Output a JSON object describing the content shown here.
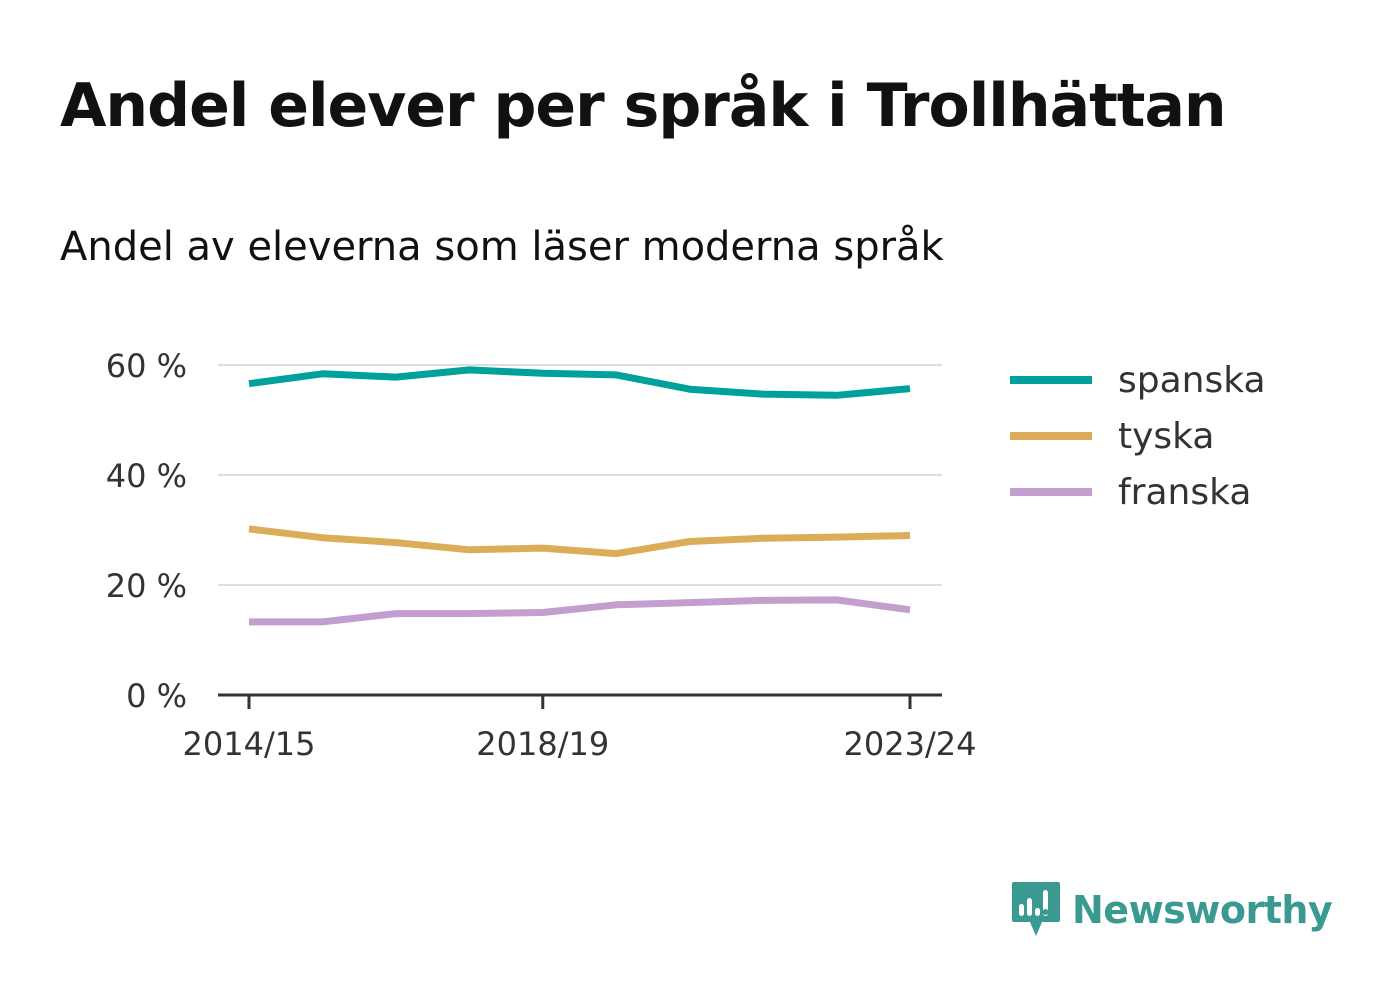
{
  "title": "Andel elever per språk i Trollhättan",
  "subtitle": "Andel av eleverna som läser moderna språk",
  "brand": {
    "name": "Newsworthy",
    "color": "#3a9a92",
    "icon": "newsworthy-logo-icon"
  },
  "chart_data": {
    "type": "line",
    "x": [
      "2014/15",
      "2015/16",
      "2016/17",
      "2017/18",
      "2018/19",
      "2019/20",
      "2020/21",
      "2021/22",
      "2022/23",
      "2023/24"
    ],
    "x_tick_labels": [
      "2014/15",
      "2018/19",
      "2023/24"
    ],
    "y_tick_labels": [
      "0 %",
      "20 %",
      "40 %",
      "60 %"
    ],
    "y_ticks": [
      0,
      20,
      40,
      60
    ],
    "ylim": [
      0,
      60
    ],
    "grid": true,
    "legend_position": "right",
    "series": [
      {
        "name": "spanska",
        "color": "#00a19a",
        "values": [
          56.6,
          58.4,
          57.8,
          59.1,
          58.5,
          58.2,
          55.6,
          54.7,
          54.5,
          55.7
        ]
      },
      {
        "name": "tyska",
        "color": "#dbad5a",
        "values": [
          30.2,
          28.6,
          27.7,
          26.4,
          26.7,
          25.7,
          27.9,
          28.5,
          28.7,
          29.0
        ]
      },
      {
        "name": "franska",
        "color": "#c29fce",
        "values": [
          13.3,
          13.3,
          14.8,
          14.8,
          15.0,
          16.4,
          16.8,
          17.2,
          17.3,
          15.5
        ]
      }
    ]
  }
}
